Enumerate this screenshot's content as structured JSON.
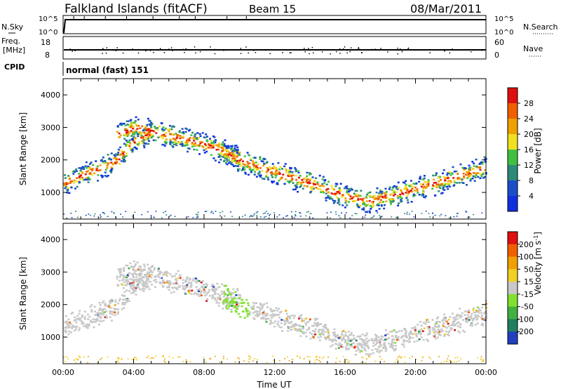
{
  "header": {
    "station": "Falkland Islands (fitACF)",
    "beam": "Beam 15",
    "date": "08/Mar/2011"
  },
  "panels": {
    "nsky": {
      "left_label": "N.Sky",
      "right_label": "N.Search",
      "right_ticks": [
        "10^5",
        "10^0"
      ],
      "left_ticks": [
        "10^5",
        "10^0"
      ]
    },
    "freq": {
      "left_label_1": "Freq.",
      "left_label_2": "[MHz]",
      "left_ticks": [
        "18",
        "8"
      ],
      "right_label": "Nave",
      "right_ticks": [
        "60",
        "0"
      ]
    },
    "cpid": {
      "label": "CPID",
      "value": "normal (fast) 151"
    }
  },
  "chart_data": [
    {
      "type": "heatmap",
      "name": "Power",
      "ylabel": "Slant Range [km]",
      "xlabel": "",
      "x_range_hours": [
        0,
        24
      ],
      "ylim": [
        180,
        4500
      ],
      "yticks": [
        "1000",
        "2000",
        "3000",
        "4000"
      ],
      "colorbar": {
        "label": "Power [dB]",
        "ticks": [
          "4",
          "8",
          "12",
          "16",
          "20",
          "24",
          "28"
        ],
        "colors": [
          "#1030e0",
          "#1a4ec8",
          "#2c8a78",
          "#40c040",
          "#f0e020",
          "#f0a000",
          "#f06000",
          "#e01010"
        ]
      },
      "bands": [
        {
          "t": [
            0.0,
            1.0,
            2.0,
            3.0,
            4.0,
            5.0
          ],
          "r": [
            1300,
            1550,
            1750,
            2000,
            2600,
            2850
          ]
        },
        {
          "t": [
            3.0,
            4.0,
            5.0,
            6.0,
            7.0,
            8.0,
            9.0,
            10.0
          ],
          "r": [
            2800,
            3000,
            2900,
            2750,
            2650,
            2500,
            2300,
            2100
          ]
        },
        {
          "t": [
            9.0,
            10.0,
            12.0,
            14.0,
            16.0,
            17.5,
            18.5
          ],
          "r": [
            2300,
            2000,
            1650,
            1300,
            900,
            750,
            950
          ]
        },
        {
          "t": [
            18.5,
            20.0,
            22.0,
            24.0
          ],
          "r": [
            900,
            1150,
            1450,
            1800
          ]
        }
      ]
    },
    {
      "type": "heatmap",
      "name": "Velocity",
      "ylabel": "Slant Range [km]",
      "xlabel": "Time UT",
      "x_range_hours": [
        0,
        24
      ],
      "xticks": [
        "00:00",
        "04:00",
        "08:00",
        "12:00",
        "16:00",
        "20:00",
        "00:00"
      ],
      "ylim": [
        180,
        4500
      ],
      "yticks": [
        "1000",
        "2000",
        "3000",
        "4000"
      ],
      "colorbar": {
        "label_main": "Velocity [m s",
        "label_sup": "-1",
        "label_end": "]",
        "ticks": [
          "200",
          "100",
          "50",
          "15",
          "-15",
          "-50",
          "-100",
          "-200"
        ],
        "colors": [
          "#2040c0",
          "#208060",
          "#40b040",
          "#80e030",
          "#c8c8c8",
          "#f0d020",
          "#f0a000",
          "#f06000",
          "#e01010"
        ]
      },
      "bands": [
        {
          "t": [
            0.0,
            1.0,
            2.0,
            3.0,
            4.0,
            5.0
          ],
          "r": [
            1300,
            1550,
            1750,
            2000,
            2600,
            2850
          ]
        },
        {
          "t": [
            3.0,
            4.0,
            5.0,
            6.0,
            7.0,
            8.0,
            9.0,
            10.0
          ],
          "r": [
            2800,
            3000,
            2900,
            2750,
            2650,
            2500,
            2300,
            2100
          ]
        },
        {
          "t": [
            9.0,
            10.0,
            12.0,
            14.0,
            16.0,
            17.5,
            18.5
          ],
          "r": [
            2300,
            2000,
            1650,
            1300,
            900,
            750,
            950
          ]
        },
        {
          "t": [
            18.5,
            20.0,
            22.0,
            24.0
          ],
          "r": [
            900,
            1150,
            1450,
            1800
          ]
        }
      ]
    }
  ]
}
